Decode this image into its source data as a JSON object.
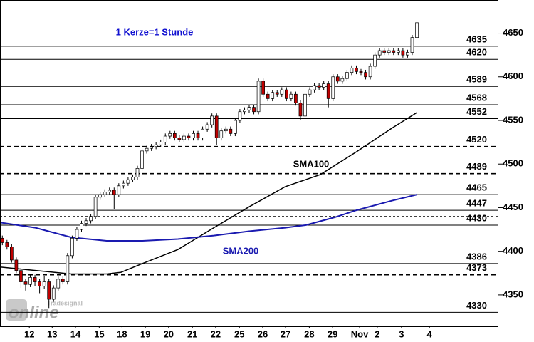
{
  "chart_data": {
    "type": "candlestick",
    "annotation": "1 Kerze=1 Stunde",
    "annotation_color": "#1010d0",
    "watermark": {
      "small": "Tradesignal",
      "large": "online"
    },
    "xlim": [
      -0.5,
      106.5
    ],
    "ylim": [
      4314,
      4688
    ],
    "yticks": [
      4350,
      4400,
      4450,
      4500,
      4550,
      4600,
      4650
    ],
    "xticks": [
      {
        "value": 5.8,
        "label": "12"
      },
      {
        "value": 10.7,
        "label": "13"
      },
      {
        "value": 15.7,
        "label": "14"
      },
      {
        "value": 20.8,
        "label": "15"
      },
      {
        "value": 25.7,
        "label": "18"
      },
      {
        "value": 30.7,
        "label": "19"
      },
      {
        "value": 35.7,
        "label": "20"
      },
      {
        "value": 40.8,
        "label": "21"
      },
      {
        "value": 45.8,
        "label": "22"
      },
      {
        "value": 50.9,
        "label": "25"
      },
      {
        "value": 55.9,
        "label": "26"
      },
      {
        "value": 60.8,
        "label": "27"
      },
      {
        "value": 65.9,
        "label": "28"
      },
      {
        "value": 70.9,
        "label": "29"
      },
      {
        "value": 76.7,
        "label": "Nov"
      },
      {
        "value": 80.5,
        "label": "2"
      },
      {
        "value": 85.7,
        "label": "3"
      },
      {
        "value": 91.7,
        "label": "4"
      }
    ],
    "up_color": "#ffffff",
    "down_color": "#c00000",
    "open": [
      4415,
      4410,
      4405,
      4390,
      4378,
      4365,
      4362,
      4370,
      4365,
      4360,
      4365,
      4345,
      4358,
      4368,
      4365,
      4395,
      4415,
      4425,
      4432,
      4435,
      4440,
      4462,
      4465,
      4468,
      4470,
      4465,
      4475,
      4478,
      4482,
      4485,
      4495,
      4515,
      4518,
      4520,
      4522,
      4525,
      4532,
      4535,
      4530,
      4528,
      4532,
      4530,
      4535,
      4530,
      4540,
      4545,
      4555,
      4530,
      4538,
      4540,
      4535,
      4550,
      4560,
      4562,
      4565,
      4560,
      4595,
      4580,
      4575,
      4582,
      4580,
      4585,
      4575,
      4580,
      4570,
      4555,
      4580,
      4585,
      4590,
      4588,
      4592,
      4575,
      4600,
      4595,
      4598,
      4605,
      4610,
      4606,
      4605,
      4600,
      4612,
      4625,
      4630,
      4628,
      4630,
      4628,
      4630,
      4625,
      4628,
      4645
    ],
    "high": [
      4418,
      4413,
      4408,
      4393,
      4381,
      4368,
      4373,
      4373,
      4368,
      4372,
      4368,
      4361,
      4371,
      4371,
      4398,
      4418,
      4428,
      4435,
      4438,
      4443,
      4465,
      4468,
      4471,
      4473,
      4473,
      4478,
      4481,
      4485,
      4488,
      4498,
      4518,
      4521,
      4523,
      4525,
      4528,
      4535,
      4538,
      4538,
      4533,
      4535,
      4535,
      4538,
      4538,
      4543,
      4548,
      4558,
      4558,
      4541,
      4543,
      4543,
      4553,
      4563,
      4565,
      4568,
      4568,
      4598,
      4598,
      4583,
      4585,
      4585,
      4588,
      4588,
      4583,
      4583,
      4573,
      4583,
      4588,
      4593,
      4593,
      4595,
      4595,
      4603,
      4603,
      4601,
      4608,
      4613,
      4613,
      4609,
      4608,
      4615,
      4628,
      4633,
      4633,
      4633,
      4633,
      4633,
      4633,
      4631,
      4648,
      4666
    ],
    "low": [
      4407,
      4402,
      4387,
      4375,
      4358,
      4355,
      4359,
      4360,
      4352,
      4357,
      4335,
      4342,
      4355,
      4362,
      4362,
      4392,
      4412,
      4422,
      4429,
      4432,
      4437,
      4459,
      4462,
      4465,
      4448,
      4462,
      4472,
      4475,
      4479,
      4482,
      4492,
      4512,
      4515,
      4517,
      4519,
      4522,
      4529,
      4527,
      4525,
      4525,
      4527,
      4527,
      4527,
      4527,
      4537,
      4542,
      4522,
      4527,
      4535,
      4532,
      4532,
      4547,
      4557,
      4559,
      4557,
      4557,
      4577,
      4572,
      4572,
      4577,
      4577,
      4572,
      4572,
      4567,
      4550,
      4552,
      4577,
      4582,
      4585,
      4585,
      4565,
      4572,
      4592,
      4592,
      4595,
      4602,
      4603,
      4602,
      4597,
      4597,
      4609,
      4622,
      4625,
      4625,
      4625,
      4625,
      4622,
      4622,
      4625,
      4642
    ],
    "close": [
      4410,
      4405,
      4390,
      4378,
      4365,
      4362,
      4370,
      4365,
      4360,
      4365,
      4345,
      4358,
      4368,
      4365,
      4395,
      4415,
      4425,
      4432,
      4435,
      4440,
      4462,
      4465,
      4468,
      4470,
      4465,
      4475,
      4478,
      4482,
      4485,
      4495,
      4515,
      4518,
      4520,
      4522,
      4525,
      4532,
      4535,
      4530,
      4528,
      4532,
      4530,
      4535,
      4530,
      4540,
      4545,
      4555,
      4530,
      4538,
      4540,
      4535,
      4550,
      4560,
      4562,
      4565,
      4560,
      4595,
      4580,
      4575,
      4582,
      4580,
      4585,
      4575,
      4580,
      4570,
      4555,
      4580,
      4585,
      4590,
      4588,
      4592,
      4575,
      4600,
      4595,
      4598,
      4605,
      4610,
      4606,
      4605,
      4600,
      4612,
      4625,
      4630,
      4628,
      4630,
      4628,
      4630,
      4625,
      4628,
      4645,
      4662
    ],
    "series": [
      {
        "name": "SMA100",
        "color": "#000000",
        "x": [
          -0.5,
          7.1,
          14.8,
          22.4,
          25.5,
          30.1,
          37.7,
          45.4,
          53,
          60.7,
          68.3,
          76,
          83.6,
          89
        ],
        "values": [
          4382,
          4378,
          4374,
          4374,
          4376,
          4386,
          4402,
          4427,
          4451,
          4474,
          4488,
          4514,
          4541,
          4559
        ]
      },
      {
        "name": "SMA200",
        "color": "#1a1ab0",
        "x": [
          -0.5,
          7.1,
          14.8,
          22.4,
          30.1,
          37.7,
          45.4,
          53,
          60.7,
          65.2,
          71.4,
          76,
          83.6,
          89
        ],
        "values": [
          4433,
          4427,
          4416,
          4412,
          4412,
          4414,
          4418,
          4423,
          4427,
          4430,
          4439,
          4447,
          4458,
          4465
        ]
      }
    ],
    "levels": [
      {
        "value": 4635,
        "style": "solid",
        "labeled": true
      },
      {
        "value": 4620,
        "style": "solid",
        "labeled": true
      },
      {
        "value": 4589,
        "style": "solid",
        "labeled": true
      },
      {
        "value": 4568,
        "style": "solid",
        "labeled": true
      },
      {
        "value": 4552,
        "style": "solid",
        "labeled": true
      },
      {
        "value": 4520,
        "style": "dashed",
        "labeled": true
      },
      {
        "value": 4489,
        "style": "dashed",
        "labeled": true
      },
      {
        "value": 4465,
        "style": "solid",
        "labeled": true
      },
      {
        "value": 4447,
        "style": "solid",
        "labeled": true
      },
      {
        "value": 4440,
        "style": "dotted",
        "labeled": false
      },
      {
        "value": 4430,
        "style": "solid",
        "labeled": true
      },
      {
        "value": 4386,
        "style": "solid",
        "labeled": true
      },
      {
        "value": 4373,
        "style": "dashed",
        "labeled": true
      },
      {
        "value": 4330,
        "style": "solid",
        "labeled": true
      }
    ]
  }
}
